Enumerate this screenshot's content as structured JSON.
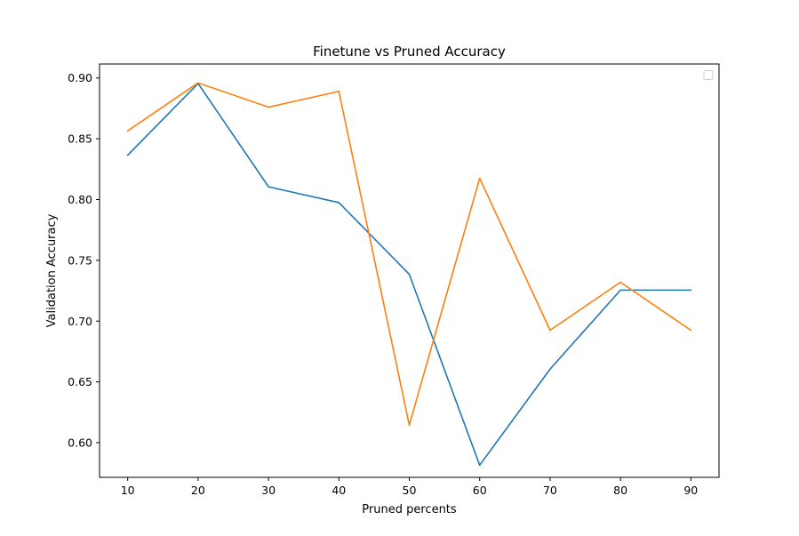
{
  "chart_data": {
    "type": "line",
    "title": "Finetune vs Pruned Accuracy",
    "xlabel": "Pruned percents",
    "ylabel": "Validation Accuracy",
    "x": [
      10,
      20,
      30,
      40,
      50,
      60,
      70,
      80,
      90
    ],
    "xticks": [
      "10",
      "20",
      "30",
      "40",
      "50",
      "60",
      "70",
      "80",
      "90"
    ],
    "yticks": [
      "0.60",
      "0.65",
      "0.70",
      "0.75",
      "0.80",
      "0.85",
      "0.90"
    ],
    "xlim": [
      6,
      94
    ],
    "ylim": [
      0.5715,
      0.9115
    ],
    "series": [
      {
        "color": "#1f77b4",
        "values": [
          0.8365,
          0.8955,
          0.8105,
          0.7975,
          0.7385,
          0.5815,
          0.6605,
          0.7255,
          0.7255
        ]
      },
      {
        "color": "#ff7f0e",
        "values": [
          0.8565,
          0.896,
          0.876,
          0.889,
          0.6145,
          0.8175,
          0.6925,
          0.732,
          0.6925
        ]
      }
    ],
    "grid": false,
    "legend": {
      "location": "upper right",
      "entries": []
    }
  }
}
